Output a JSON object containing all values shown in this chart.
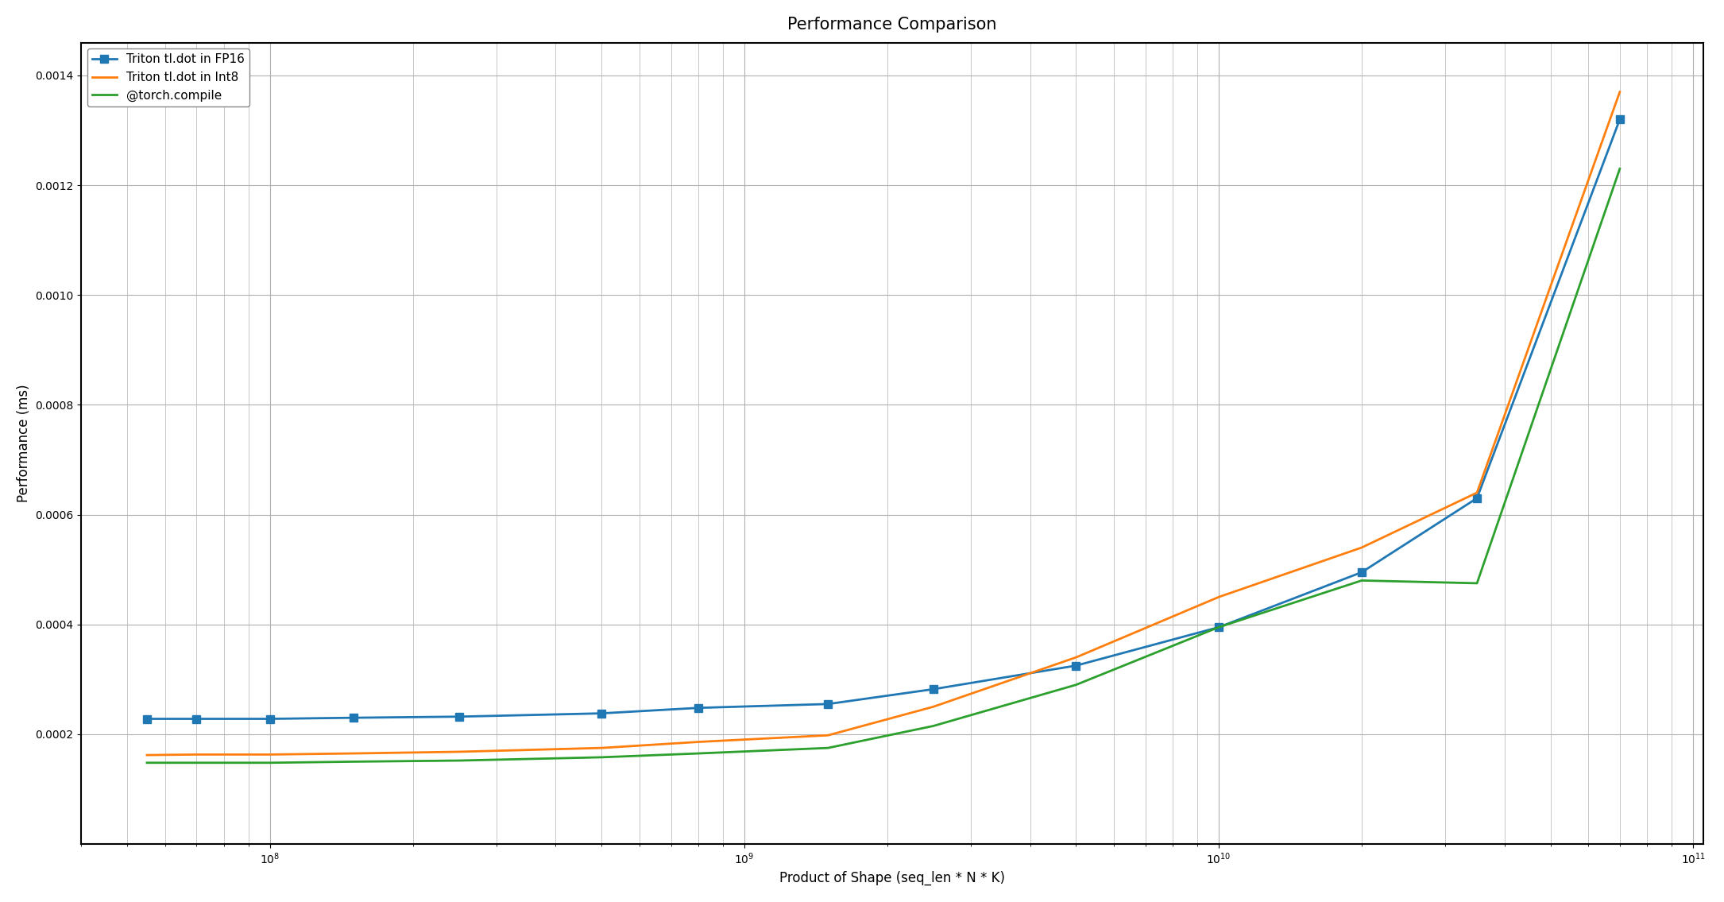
{
  "title": "Performance Comparison",
  "xlabel": "Product of Shape (seq_len * N * K)",
  "ylabel": "Performance (ms)",
  "series": [
    {
      "label": "Triton tl.dot in FP16",
      "color": "#1f77b4",
      "marker": "s",
      "x": [
        55000000.0,
        70000000.0,
        100000000.0,
        150000000.0,
        250000000.0,
        500000000.0,
        800000000.0,
        1500000000.0,
        2500000000.0,
        5000000000.0,
        10000000000.0,
        20000000000.0,
        35000000000.0,
        70000000000.0
      ],
      "y": [
        0.000228,
        0.000228,
        0.000228,
        0.00023,
        0.000232,
        0.000238,
        0.000248,
        0.000255,
        0.000282,
        0.000325,
        0.000395,
        0.000495,
        0.00063,
        0.00132
      ]
    },
    {
      "label": "Triton tl.dot in Int8",
      "color": "#ff7f0e",
      "marker": null,
      "x": [
        55000000.0,
        70000000.0,
        100000000.0,
        150000000.0,
        250000000.0,
        500000000.0,
        800000000.0,
        1500000000.0,
        2500000000.0,
        5000000000.0,
        10000000000.0,
        20000000000.0,
        35000000000.0,
        70000000000.0
      ],
      "y": [
        0.000162,
        0.000163,
        0.000163,
        0.000165,
        0.000168,
        0.000175,
        0.000186,
        0.000198,
        0.00025,
        0.00034,
        0.00045,
        0.00054,
        0.00064,
        0.00137
      ]
    },
    {
      "label": "@torch.compile",
      "color": "#2ca02c",
      "marker": null,
      "x": [
        55000000.0,
        70000000.0,
        100000000.0,
        150000000.0,
        250000000.0,
        500000000.0,
        800000000.0,
        1500000000.0,
        2500000000.0,
        5000000000.0,
        10000000000.0,
        20000000000.0,
        35000000000.0,
        70000000000.0
      ],
      "y": [
        0.000148,
        0.000148,
        0.000148,
        0.00015,
        0.000152,
        0.000158,
        0.000165,
        0.000175,
        0.000215,
        0.00029,
        0.000395,
        0.00048,
        0.000475,
        0.00123
      ]
    }
  ],
  "xlim": [
    40000000.0,
    105000000000.0
  ],
  "ylim": [
    0,
    0.00146
  ],
  "yticks": [
    0.0002,
    0.0004,
    0.0006,
    0.0008,
    0.001,
    0.0012,
    0.0014
  ],
  "background_color": "#ffffff",
  "grid_color": "#b0b0b0",
  "legend_loc": "upper left",
  "title_fontsize": 15,
  "label_fontsize": 12
}
